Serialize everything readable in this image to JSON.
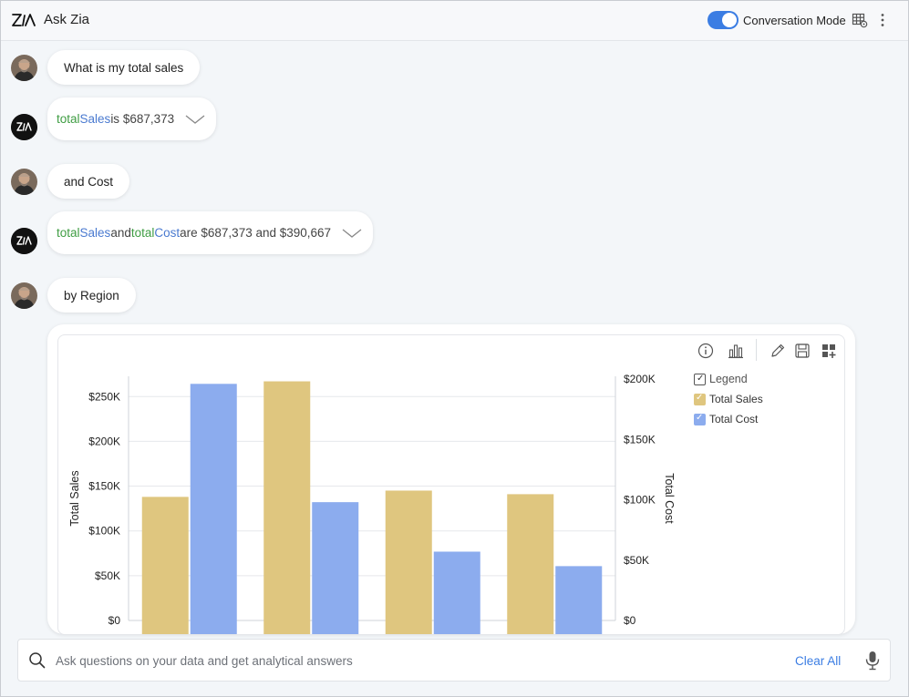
{
  "header": {
    "title": "Ask Zia",
    "conversation_mode_label": "Conversation Mode",
    "conversation_mode_on": true
  },
  "messages": [
    {
      "role": "user",
      "text": "What is my total sales"
    },
    {
      "role": "zia",
      "parts": [
        "total",
        " ",
        "Sales",
        " is $687,373"
      ]
    },
    {
      "role": "user",
      "text": "and Cost"
    },
    {
      "role": "zia",
      "parts": [
        "total",
        " ",
        "Sales",
        " and ",
        "total",
        " ",
        "Cost",
        " are $687,373 and $390,667"
      ]
    },
    {
      "role": "user",
      "text": "by Region"
    }
  ],
  "chart_data": {
    "type": "bar",
    "categories": [
      "",
      "",
      "",
      ""
    ],
    "series": [
      {
        "name": "Total Sales",
        "axis": "left",
        "color": "#dfc67f",
        "values": [
          138000,
          267000,
          145000,
          141000
        ]
      },
      {
        "name": "Total Cost",
        "axis": "right",
        "color": "#8cacee",
        "values": [
          196000,
          98000,
          57000,
          45000
        ]
      }
    ],
    "ylabel": "Total Sales",
    "y2label": "Total Cost",
    "ylim": [
      0,
      272000
    ],
    "y2lim": [
      0,
      204000
    ],
    "yticks": [
      0,
      50000,
      100000,
      150000,
      200000,
      250000
    ],
    "ytick_labels": [
      "$0",
      "$50K",
      "$100K",
      "$150K",
      "$200K",
      "$250K"
    ],
    "y2ticks": [
      0,
      50000,
      100000,
      150000,
      200000
    ],
    "y2tick_labels": [
      "$0",
      "$50K",
      "$100K",
      "$150K",
      "$200K"
    ],
    "legend": {
      "title": "Legend",
      "placement": "top-right",
      "items": [
        "Total Sales",
        "Total Cost"
      ]
    },
    "grid": true
  },
  "input": {
    "placeholder": "Ask questions on your data and get analytical answers",
    "value": "",
    "clear_label": "Clear All"
  }
}
